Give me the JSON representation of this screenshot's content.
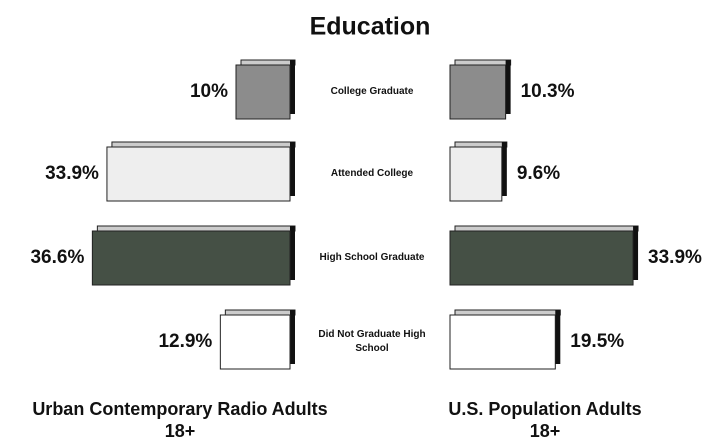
{
  "chart_data": {
    "type": "bar",
    "orientation": "horizontal",
    "title": "Education",
    "categories": [
      "College Graduate",
      "Attended College",
      "High School Graduate",
      "Did Not Graduate High School"
    ],
    "colors": [
      "#8c8c8c",
      "#eeeeee",
      "#455045",
      "#ffffff"
    ],
    "series": [
      {
        "name": "Urban Contemporary Radio Adults 18+",
        "values": [
          10,
          33.9,
          36.6,
          12.9
        ],
        "value_labels": [
          "10%",
          "33.9%",
          "36.6%",
          "12.9%"
        ]
      },
      {
        "name": "U.S. Population Adults 18+",
        "values": [
          10.3,
          9.6,
          33.9,
          19.5
        ],
        "value_labels": [
          "10.3%",
          "9.6%",
          "33.9%",
          "19.5%"
        ]
      }
    ]
  }
}
